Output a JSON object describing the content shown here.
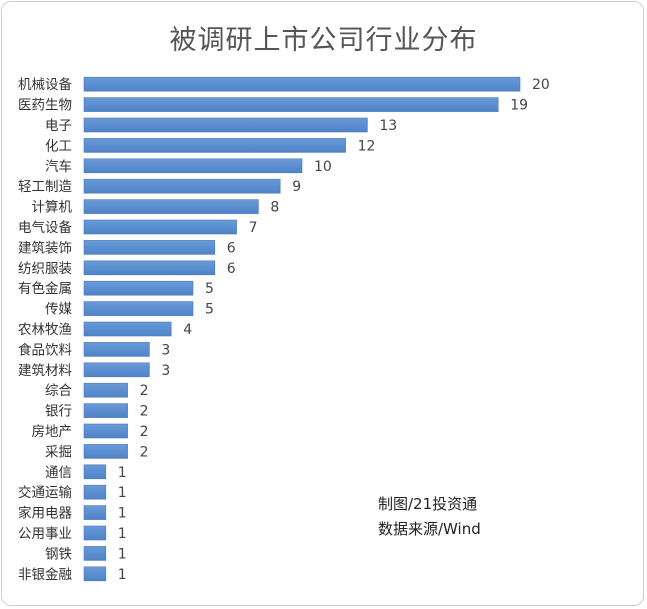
{
  "chart_data": {
    "type": "bar",
    "orientation": "horizontal",
    "title": "被调研上市公司行业分布",
    "categories": [
      "机械设备",
      "医药生物",
      "电子",
      "化工",
      "汽车",
      "轻工制造",
      "计算机",
      "电气设备",
      "建筑装饰",
      "纺织服装",
      "有色金属",
      "传媒",
      "农林牧渔",
      "食品饮料",
      "建筑材料",
      "综合",
      "银行",
      "房地产",
      "采掘",
      "通信",
      "交通运输",
      "家用电器",
      "公用事业",
      "钢铁",
      "非银金融"
    ],
    "values": [
      20,
      19,
      13,
      12,
      10,
      9,
      8,
      7,
      6,
      6,
      5,
      5,
      4,
      3,
      3,
      2,
      2,
      2,
      2,
      1,
      1,
      1,
      1,
      1,
      1
    ],
    "xlim": [
      0,
      20
    ],
    "grid": false,
    "legend": "none",
    "bar_color": "#5b8fd0",
    "bar_edge_color": "#4a7bbd",
    "label_color": "#333333",
    "value_color": "#444444"
  },
  "notes": {
    "source": "制图/21投资通",
    "credit": "数据来源/Wind"
  }
}
